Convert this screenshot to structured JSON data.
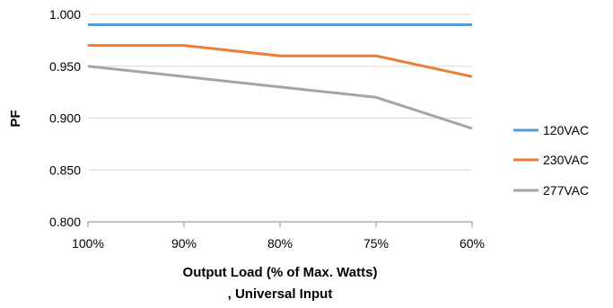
{
  "chart_data": {
    "type": "line",
    "categories": [
      "100%",
      "90%",
      "80%",
      "75%",
      "60%"
    ],
    "series": [
      {
        "name": "120VAC",
        "color": "#5B9BD5",
        "values": [
          0.99,
          0.99,
          0.99,
          0.99,
          0.99
        ]
      },
      {
        "name": "230VAC",
        "color": "#ED7D31",
        "values": [
          0.97,
          0.97,
          0.96,
          0.96,
          0.94
        ]
      },
      {
        "name": "277VAC",
        "color": "#A5A5A5",
        "values": [
          0.95,
          0.94,
          0.93,
          0.92,
          0.89
        ]
      }
    ],
    "ylabel": "PF",
    "xlabel_line1": "Output Load (% of Max. Watts)",
    "xlabel_line2": ", Universal Input",
    "ylim": [
      0.8,
      1.0
    ],
    "yticks": [
      "0.800",
      "0.850",
      "0.900",
      "0.950",
      "1.000"
    ],
    "ytick_values": [
      0.8,
      0.85,
      0.9,
      0.95,
      1.0
    ],
    "grid": true,
    "legend": "right"
  }
}
